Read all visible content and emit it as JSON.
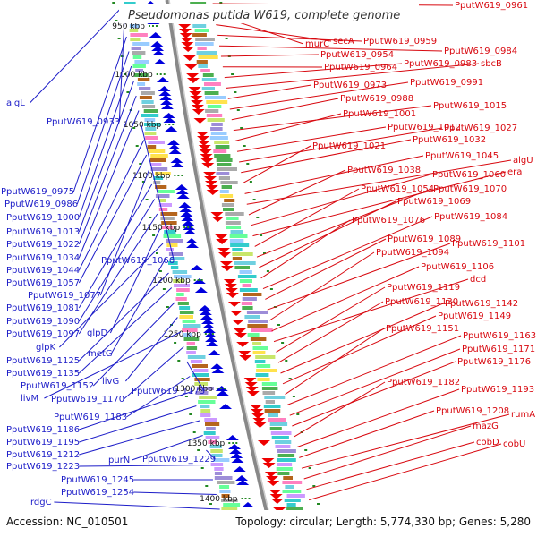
{
  "title": "Pseudomonas putida W619, complete genome",
  "accession": "Accession: NC_010501",
  "summary": "Topology: circular; Length: 5,774,330 bp; Genes: 5,280",
  "colors": {
    "forward": "#ee0000",
    "reverse": "#0000dd",
    "backbone": "#888888",
    "tick": "#228822",
    "left_label": "#1c1cc8",
    "right_label": "#d8080f"
  },
  "scale_labels": [
    "950 kbp",
    "1000 kbp",
    "1050 kbp",
    "1100 kbp",
    "1150 kbp",
    "1200 kbp",
    "1250 kbp",
    "1300 kbp",
    "1350 kbp",
    "1400 kbp"
  ],
  "left_labels": [
    "algL",
    "PputW619_0933",
    "PputW619_0975",
    "PputW619_0986",
    "PputW619_1000",
    "PputW619_1013",
    "PputW619_1022",
    "PputW619_1034",
    "PputW619_1066",
    "PputW619_1044",
    "PputW619_1057",
    "PputW619_1077",
    "PputW619_1081",
    "PputW619_1090",
    "PputW619_1097",
    "glpD",
    "glpK",
    "metG",
    "PputW619_1125",
    "PputW619_1135",
    "PputW619_1152",
    "livG",
    "livM",
    "PputW619_1170",
    "PputW619_1173",
    "PputW619_1183",
    "PputW619_1186",
    "PputW619_1195",
    "PputW619_1212",
    "purN",
    "PputW619_1229",
    "PputW619_1223",
    "PputW619_1245",
    "PputW619_1254",
    "rdgC"
  ],
  "right_labels": [
    "PputW619_0961",
    "murC",
    "secA",
    "PputW619_0959",
    "PputW619_0984",
    "PputW619_0954",
    "PputW619_0964",
    "PputW619_0983",
    "sbcB",
    "PputW619_0973",
    "PputW619_0991",
    "PputW619_0988",
    "PputW619_1015",
    "PputW619_1001",
    "PputW619_1012",
    "PputW619_1027",
    "PputW619_1032",
    "PputW619_1021",
    "PputW619_1045",
    "algU",
    "PputW619_1038",
    "PputW619_1060",
    "era",
    "PputW619_1054",
    "PputW619_1070",
    "PputW619_1069",
    "PputW619_1076",
    "PputW619_1084",
    "PputW619_1089",
    "PputW619_1101",
    "PputW619_1094",
    "PputW619_1106",
    "dcd",
    "PputW619_1119",
    "PputW619_1130",
    "PputW619_1142",
    "PputW619_1149",
    "PputW619_1151",
    "PputW619_1163",
    "PputW619_1171",
    "PputW619_1176",
    "PputW619_1182",
    "PputW619_1193",
    "PputW619_1208",
    "rumA",
    "mazG",
    "cobD",
    "cobU"
  ]
}
